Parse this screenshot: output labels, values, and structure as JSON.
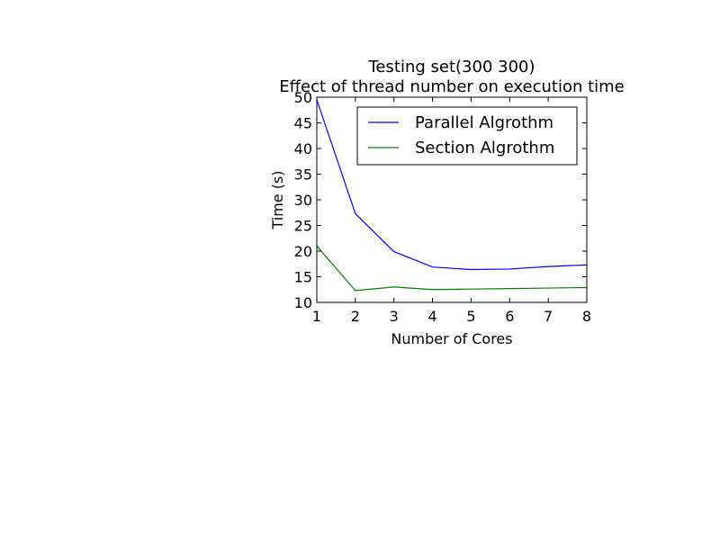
{
  "chart_data": {
    "type": "line",
    "title_line1": "Testing set(300 300)",
    "title_line2": "Effect of thread number on execution time",
    "xlabel": "Number of Cores",
    "ylabel": "Time (s)",
    "xlim": [
      1,
      8
    ],
    "ylim": [
      10,
      50
    ],
    "x_ticks": [
      1,
      2,
      3,
      4,
      5,
      6,
      7,
      8
    ],
    "y_ticks": [
      10,
      15,
      20,
      25,
      30,
      35,
      40,
      45,
      50
    ],
    "grid": false,
    "legend_position": "top-right",
    "x": [
      1,
      2,
      3,
      4,
      5,
      6,
      7,
      8
    ],
    "series": [
      {
        "name": "Parallel Algrothm",
        "color": "#0000ff",
        "values": [
          49.5,
          27.3,
          19.9,
          16.9,
          16.4,
          16.5,
          17.0,
          17.3
        ]
      },
      {
        "name": "Section Algrothm",
        "color": "#008000",
        "values": [
          21.0,
          12.3,
          13.0,
          12.5,
          12.6,
          12.7,
          12.8,
          12.9
        ]
      }
    ]
  }
}
